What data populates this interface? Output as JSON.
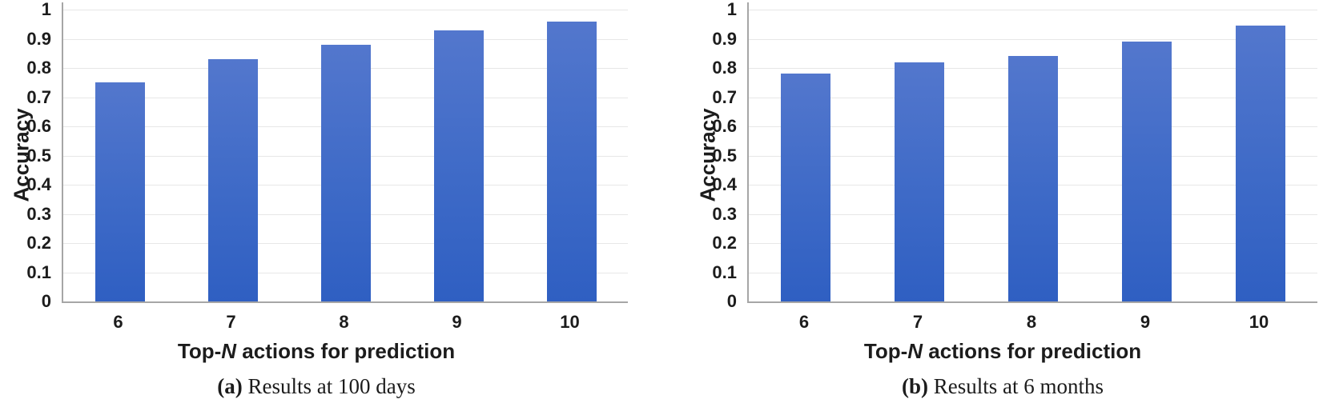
{
  "colors": {
    "bar_gradient_top": "#5377cd",
    "bar_gradient_mid": "#3e6ac7",
    "bar_gradient_bottom": "#2f5fc2",
    "gridline": "#e7e7e7",
    "axis": "#a6a6a6",
    "text": "#1c1c1c"
  },
  "chart_data": [
    {
      "type": "bar",
      "categories": [
        "6",
        "7",
        "8",
        "9",
        "10"
      ],
      "values": [
        0.75,
        0.83,
        0.88,
        0.93,
        0.96
      ],
      "ylabel": "Accuracy",
      "xlabel_prefix": "Top-",
      "xlabel_italic": "N",
      "xlabel_suffix": " actions for prediction",
      "ylim": [
        0,
        1
      ],
      "yticks": [
        "0",
        "0.1",
        "0.2",
        "0.3",
        "0.4",
        "0.5",
        "0.6",
        "0.7",
        "0.8",
        "0.9",
        "1"
      ],
      "grid": true,
      "legend_position": "none",
      "caption_label": "(a)",
      "caption_text": "Results at 100 days"
    },
    {
      "type": "bar",
      "categories": [
        "6",
        "7",
        "8",
        "9",
        "10"
      ],
      "values": [
        0.78,
        0.82,
        0.84,
        0.89,
        0.945
      ],
      "ylabel": "Accuracy",
      "xlabel_prefix": "Top-",
      "xlabel_italic": "N",
      "xlabel_suffix": " actions for prediction",
      "ylim": [
        0,
        1
      ],
      "yticks": [
        "0",
        "0.1",
        "0.2",
        "0.3",
        "0.4",
        "0.5",
        "0.6",
        "0.7",
        "0.8",
        "0.9",
        "1"
      ],
      "grid": true,
      "legend_position": "none",
      "caption_label": "(b)",
      "caption_text": "Results at 6 months"
    }
  ]
}
